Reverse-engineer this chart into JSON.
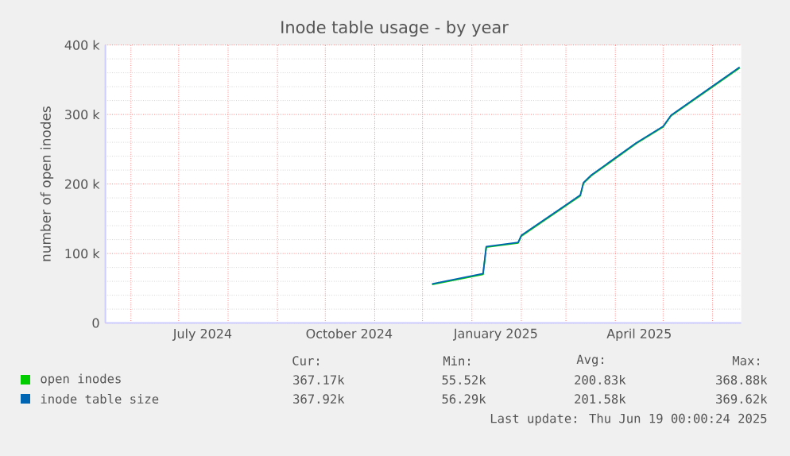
{
  "chart_data": {
    "type": "line",
    "title": "Inode table usage - by year",
    "ylabel": "number of open inodes",
    "x": [
      "2024-12-07",
      "2025-01-08",
      "2025-01-10",
      "2025-01-30",
      "2025-02-01",
      "2025-03-10",
      "2025-03-12",
      "2025-03-17",
      "2025-04-14",
      "2025-05-01",
      "2025-05-06",
      "2025-06-18"
    ],
    "series": [
      {
        "name": "open inodes",
        "color": "#00cc00",
        "values": [
          55500,
          70000,
          109000,
          115000,
          125000,
          183000,
          201000,
          212000,
          258000,
          282000,
          298000,
          367000
        ]
      },
      {
        "name": "inode table size",
        "color": "#0066b3",
        "values": [
          56300,
          71000,
          110000,
          116000,
          126000,
          184000,
          202000,
          213000,
          259000,
          283000,
          299000,
          368000
        ]
      }
    ],
    "xlim": [
      "2024-05-16",
      "2025-06-19"
    ],
    "xticks": [
      {
        "value": "2024-06-01",
        "label": null
      },
      {
        "value": "2024-07-01",
        "label": null
      },
      {
        "value": "2024-08-01",
        "label": null
      },
      {
        "value": "2024-09-01",
        "label": null
      },
      {
        "value": "2024-10-01",
        "label": null
      },
      {
        "value": "2024-11-01",
        "label": null
      },
      {
        "value": "2024-12-01",
        "label": null
      },
      {
        "value": "2025-01-01",
        "label": null
      },
      {
        "value": "2025-02-01",
        "label": null
      },
      {
        "value": "2025-03-01",
        "label": null
      },
      {
        "value": "2025-04-01",
        "label": null
      },
      {
        "value": "2025-05-01",
        "label": null
      },
      {
        "value": "2025-06-01",
        "label": null
      },
      {
        "value": "2024-07-16",
        "label": "July 2024"
      },
      {
        "value": "2024-10-16",
        "label": "October 2024"
      },
      {
        "value": "2025-01-16",
        "label": "January 2025"
      },
      {
        "value": "2025-04-16",
        "label": "April 2025"
      }
    ],
    "ylim": [
      0,
      400000
    ],
    "yticks": [
      0,
      {
        "value": 100000,
        "label": "100 k"
      },
      {
        "value": 200000,
        "label": "200 k"
      },
      {
        "value": 300000,
        "label": "300 k"
      },
      {
        "value": 400000,
        "label": "400 k"
      }
    ],
    "grid": true,
    "legend": "bottom",
    "annotations": [
      "Cur:",
      "Min:",
      "Avg:",
      "Max:",
      "367.17k",
      "55.52k",
      "200.83k",
      "368.88k",
      "367.92k",
      "56.29k",
      "201.58k",
      "369.62k",
      "Last update: Thu Jun 19 00:00:24 2025"
    ]
  }
}
